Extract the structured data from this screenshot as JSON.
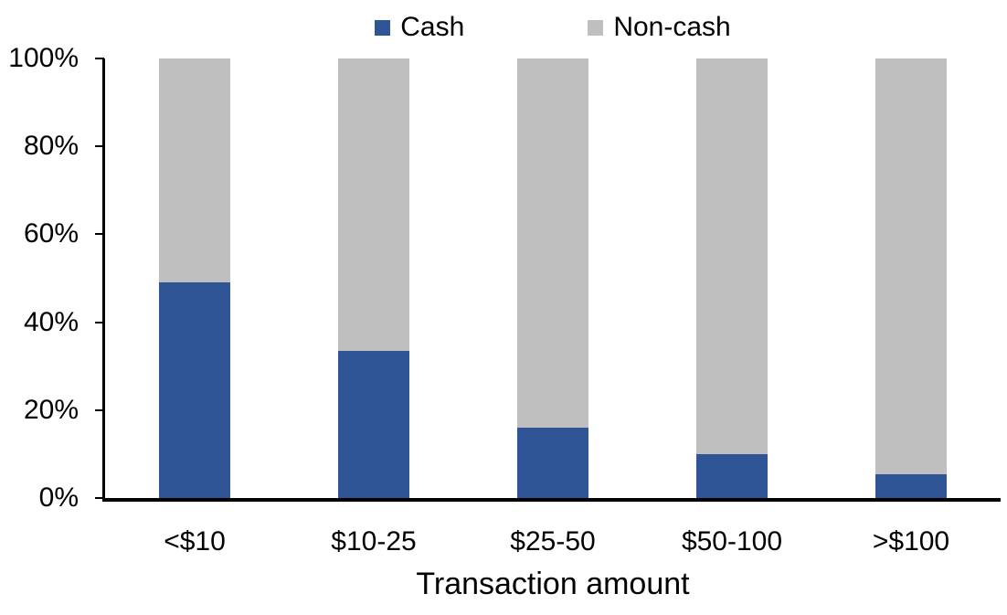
{
  "chart_data": {
    "type": "bar",
    "stacked": true,
    "stack_mode": "percent",
    "title": "",
    "xlabel": "Transaction amount",
    "ylabel": "",
    "ylim": [
      0,
      100
    ],
    "grid": false,
    "legend_position": "top",
    "categories": [
      "<$10",
      "$10-25",
      "$25-50",
      "$50-100",
      ">$100"
    ],
    "series": [
      {
        "name": "Cash",
        "color": "#2F5597",
        "values": [
          49,
          33.5,
          16,
          10,
          5.5
        ]
      },
      {
        "name": "Non-cash",
        "color": "#BFBFBF",
        "values": [
          51,
          66.5,
          84,
          90,
          94.5
        ]
      }
    ],
    "yticks": [
      {
        "label": "0%",
        "value": 0
      },
      {
        "label": "20%",
        "value": 20
      },
      {
        "label": "40%",
        "value": 40
      },
      {
        "label": "60%",
        "value": 60
      },
      {
        "label": "80%",
        "value": 80
      },
      {
        "label": "100%",
        "value": 100
      }
    ],
    "axis_color": "#000000"
  }
}
